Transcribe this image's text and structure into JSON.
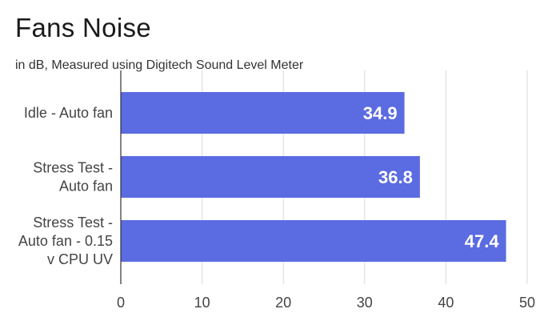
{
  "chart_data": {
    "type": "bar",
    "orientation": "horizontal",
    "title": "Fans Noise",
    "subtitle": "in dB, Measured using Digitech Sound Level Meter",
    "categories": [
      [
        "Idle - Auto fan"
      ],
      [
        "Stress Test -",
        "Auto fan"
      ],
      [
        "Stress Test -",
        "Auto fan - 0.15",
        "v CPU UV"
      ]
    ],
    "values": [
      34.9,
      36.8,
      47.4
    ],
    "data_labels": [
      "34.9",
      "36.8",
      "47.4"
    ],
    "xlim": [
      0,
      50
    ],
    "xticks": [
      "0",
      "10",
      "20",
      "30",
      "40",
      "50"
    ],
    "grid": true,
    "legend": "none",
    "colors": {
      "bar": "#5b6be1",
      "data_label": "#ffffff",
      "grid": "#d9d9d9",
      "axis": "#333333",
      "tick_label": "#444444"
    }
  }
}
